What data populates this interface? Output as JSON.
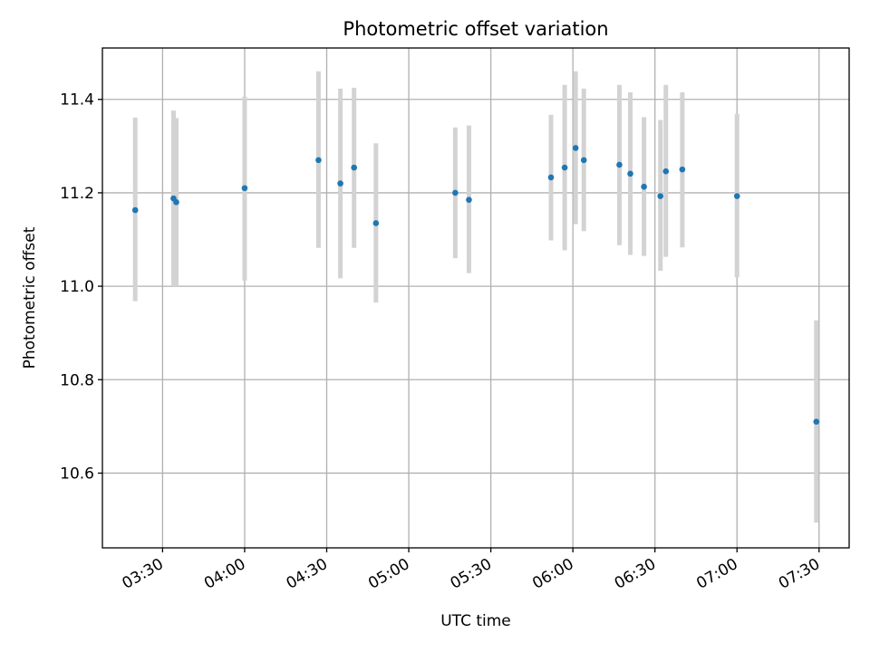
{
  "chart_data": {
    "type": "scatter",
    "title": "Photometric offset variation",
    "xlabel": "UTC time",
    "ylabel": "Photometric offset",
    "x_axis_type": "time",
    "xlim": [
      "03:08",
      "07:41"
    ],
    "ylim": [
      10.44,
      11.51
    ],
    "xticks": [
      "03:30",
      "04:00",
      "04:30",
      "05:00",
      "05:30",
      "06:00",
      "06:30",
      "07:00",
      "07:30"
    ],
    "yticks": [
      10.6,
      10.8,
      11.0,
      11.2,
      11.4
    ],
    "grid": true,
    "legend": "none",
    "point_color": "#1f77b4",
    "errorbar_color": "#d3d3d3",
    "points": [
      {
        "time": "03:20",
        "value": 11.163,
        "lower": 10.968,
        "upper": 11.361
      },
      {
        "time": "03:34",
        "value": 11.188,
        "lower": 11.0,
        "upper": 11.376
      },
      {
        "time": "03:35",
        "value": 11.18,
        "lower": 11.0,
        "upper": 11.36
      },
      {
        "time": "04:00",
        "value": 11.21,
        "lower": 11.012,
        "upper": 11.406
      },
      {
        "time": "04:27",
        "value": 11.27,
        "lower": 11.082,
        "upper": 11.46
      },
      {
        "time": "04:35",
        "value": 11.22,
        "lower": 11.017,
        "upper": 11.423
      },
      {
        "time": "04:40",
        "value": 11.254,
        "lower": 11.082,
        "upper": 11.425
      },
      {
        "time": "04:48",
        "value": 11.135,
        "lower": 10.965,
        "upper": 11.306
      },
      {
        "time": "05:17",
        "value": 11.2,
        "lower": 11.06,
        "upper": 11.34
      },
      {
        "time": "05:22",
        "value": 11.185,
        "lower": 11.028,
        "upper": 11.344
      },
      {
        "time": "05:52",
        "value": 11.233,
        "lower": 11.098,
        "upper": 11.367
      },
      {
        "time": "05:57",
        "value": 11.254,
        "lower": 11.077,
        "upper": 11.431
      },
      {
        "time": "06:01",
        "value": 11.296,
        "lower": 11.133,
        "upper": 11.46
      },
      {
        "time": "06:04",
        "value": 11.27,
        "lower": 11.118,
        "upper": 11.423
      },
      {
        "time": "06:17",
        "value": 11.26,
        "lower": 11.088,
        "upper": 11.431
      },
      {
        "time": "06:21",
        "value": 11.241,
        "lower": 11.067,
        "upper": 11.415
      },
      {
        "time": "06:26",
        "value": 11.213,
        "lower": 11.065,
        "upper": 11.362
      },
      {
        "time": "06:32",
        "value": 11.193,
        "lower": 11.033,
        "upper": 11.356
      },
      {
        "time": "06:34",
        "value": 11.246,
        "lower": 11.063,
        "upper": 11.431
      },
      {
        "time": "06:40",
        "value": 11.25,
        "lower": 11.083,
        "upper": 11.415
      },
      {
        "time": "07:00",
        "value": 11.193,
        "lower": 11.019,
        "upper": 11.369
      },
      {
        "time": "07:29",
        "value": 10.71,
        "lower": 10.494,
        "upper": 10.927
      }
    ]
  }
}
